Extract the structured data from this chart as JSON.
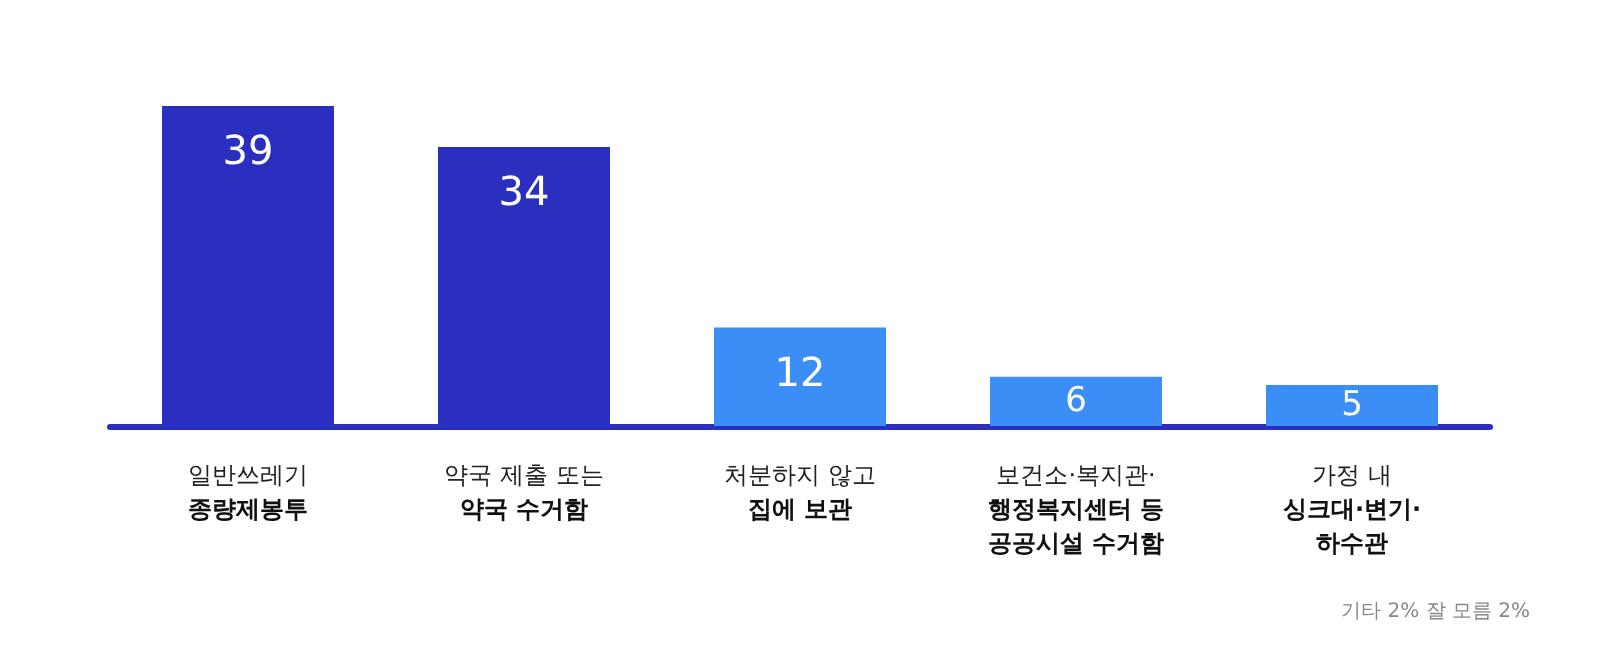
{
  "chart_data": {
    "type": "bar",
    "categories": [
      "일반쓰레기\n종량제봉투",
      "약국 제출 또는\n약국 수거함",
      "처분하지 않고\n집에 보관",
      "보건소·복지관·\n행정복지센터 등\n공공시설 수거함",
      "가정 내\n싱크대·변기·\n하수관"
    ],
    "values": [
      39,
      34,
      12,
      6,
      5
    ],
    "colors": [
      "#2a2fbf",
      "#2a2fbf",
      "#3a8ef6",
      "#3a8ef6",
      "#3a8ef6"
    ],
    "data_labels": true,
    "grid": false,
    "annotations": [
      "기타 2% 잘 모름 2%"
    ]
  }
}
